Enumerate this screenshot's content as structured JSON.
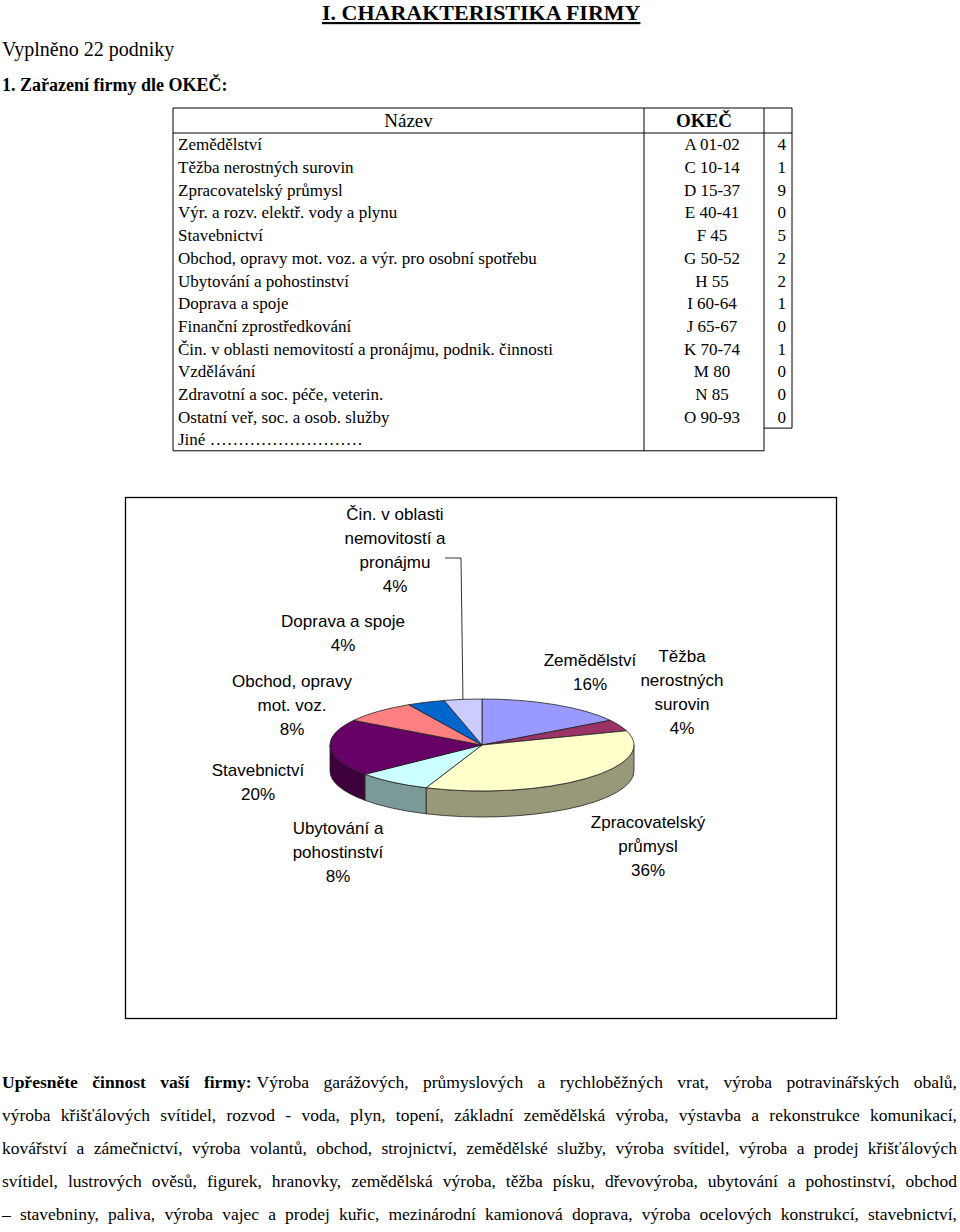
{
  "header": {
    "title": "I. CHARAKTERISTIKA FIRMY",
    "respondents": "Vyplněno 22 podniky",
    "question": "1. Zařazení firmy dle OKEČ:"
  },
  "table": {
    "columns": [
      "Název",
      "OKEČ"
    ],
    "rows": [
      [
        "Zemědělství",
        "A 01-02",
        4
      ],
      [
        "Těžba nerostných surovin",
        "C 10-14",
        1
      ],
      [
        "Zpracovatelský průmysl",
        "D 15-37",
        9
      ],
      [
        "Výr. a rozv. elektř. vody a plynu",
        "E 40-41",
        0
      ],
      [
        "Stavebnictví",
        "F 45",
        5
      ],
      [
        "Obchod, opravy mot. voz. a výr. pro osobní spotřebu",
        "G 50-52",
        2
      ],
      [
        "Ubytování a pohostinství",
        "H 55",
        2
      ],
      [
        "Doprava a spoje",
        "I 60-64",
        1
      ],
      [
        "Finanční zprostředkování",
        "J 65-67",
        0
      ],
      [
        "Čin. v oblasti nemovitostí a pronájmu, podnik. činnosti",
        "K 70-74",
        1
      ],
      [
        "Vzdělávání",
        "M 80",
        0
      ],
      [
        "Zdravotní a soc. péče, veterin.",
        "N 85",
        0
      ],
      [
        "Ostatní veř, soc. a osob. služby",
        "O 90-93",
        0
      ]
    ],
    "other_row": "Jiné ………………………"
  },
  "chart_data": {
    "type": "pie",
    "categories": [
      "Zemědělství",
      "Těžba nerostných surovin",
      "Zpracovatelský průmysl",
      "Ubytování a pohostinství",
      "Stavebnictví",
      "Obchod, opravy mot. voz.",
      "Doprava a spoje",
      "Čin. v oblasti nemovitostí a pronájmu"
    ],
    "values": [
      16,
      4,
      36,
      8,
      20,
      8,
      4,
      4
    ],
    "value_labels": [
      "16%",
      "4%",
      "36%",
      "8%",
      "20%",
      "8%",
      "4%",
      "4%"
    ],
    "colors": [
      "#9999ff",
      "#993366",
      "#ffffcc",
      "#ccffff",
      "#660066",
      "#ff8080",
      "#0066cc",
      "#ccccff"
    ],
    "data_labels": true
  },
  "activity": {
    "label": "Upřesněte činnost vaší firmy:",
    "lines": [
      "Výroba garážových, průmyslových a rychloběžných vrat, výroba potravinářských obalů,",
      "výroba křišťálových svítidel, rozvod - voda, plyn, topení, základní zemědělská výroba, výstavba a rekonstrukce komunikací,",
      "kovářství a zámečnictví, výroba volantů, obchod, strojnictví, zemědělské služby, výroba svítidel, výroba a prodej křišťálových",
      "svítidel, lustrových ověsů, figurek, hranovky, zemědělská výroba, těžba písku, dřevovýroba, ubytování a pohostinství, obchod",
      "– stavebniny, paliva, výroba vajec a prodej kuřic, mezinárodní kamionová doprava, výroba ocelových konstrukcí, stavebnictví,"
    ]
  }
}
